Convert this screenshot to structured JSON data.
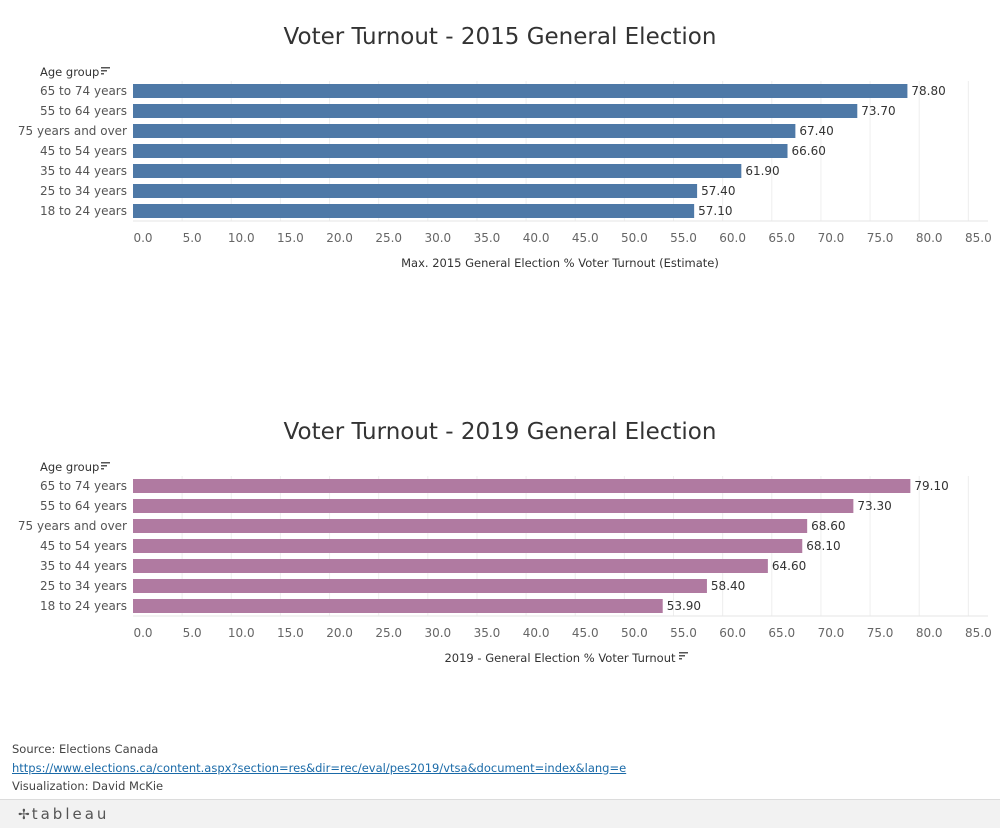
{
  "charts": [
    {
      "id": "chart-2015",
      "chart_data": {
        "type": "bar",
        "orientation": "horizontal",
        "title": "Voter Turnout - 2015 General Election",
        "row_header": "Age group",
        "categories": [
          "65 to 74 years",
          "55 to 64 years",
          "75 years and over",
          "45 to 54 years",
          "35 to 44 years",
          "25 to 34 years",
          "18 to 24 years"
        ],
        "values": [
          78.8,
          73.7,
          67.4,
          66.6,
          61.9,
          57.4,
          57.1
        ],
        "value_labels": [
          "78.80",
          "73.70",
          "67.40",
          "66.60",
          "61.90",
          "57.40",
          "57.10"
        ],
        "xlabel": "Max. 2015 General Election % Voter Turnout (Estimate)",
        "xlim": [
          0,
          87
        ],
        "ticks": [
          "0.0",
          "5.0",
          "10.0",
          "15.0",
          "20.0",
          "25.0",
          "30.0",
          "35.0",
          "40.0",
          "45.0",
          "50.0",
          "55.0",
          "60.0",
          "65.0",
          "70.0",
          "75.0",
          "80.0",
          "85.0"
        ],
        "color": "#4e79a7",
        "grid": true
      }
    },
    {
      "id": "chart-2019",
      "chart_data": {
        "type": "bar",
        "orientation": "horizontal",
        "title": "Voter Turnout - 2019 General Election",
        "row_header": "Age group",
        "categories": [
          "65 to 74 years",
          "55 to 64 years",
          "75 years and over",
          "45 to 54 years",
          "35 to 44 years",
          "25 to 34 years",
          "18 to 24 years"
        ],
        "values": [
          79.1,
          73.3,
          68.6,
          68.1,
          64.6,
          58.4,
          53.9
        ],
        "value_labels": [
          "79.10",
          "73.30",
          "68.60",
          "68.10",
          "64.60",
          "58.40",
          "53.90"
        ],
        "xlabel": "2019 - General Election % Voter Turnout",
        "xlim": [
          0,
          87
        ],
        "ticks": [
          "0.0",
          "5.0",
          "10.0",
          "15.0",
          "20.0",
          "25.0",
          "30.0",
          "35.0",
          "40.0",
          "45.0",
          "50.0",
          "55.0",
          "60.0",
          "65.0",
          "70.0",
          "75.0",
          "80.0",
          "85.0"
        ],
        "color": "#b07aa1",
        "grid": true
      }
    }
  ],
  "footer": {
    "source": "Source: Elections Canada",
    "link": "https://www.elections.ca/content.aspx?section=res&dir=rec/eval/pes2019/vtsa&document=index&lang=e",
    "credit": "Visualization: David McKie"
  },
  "toolbar": {
    "logo_text": "tableau",
    "logo_icon": "tableau-logo-icon"
  }
}
